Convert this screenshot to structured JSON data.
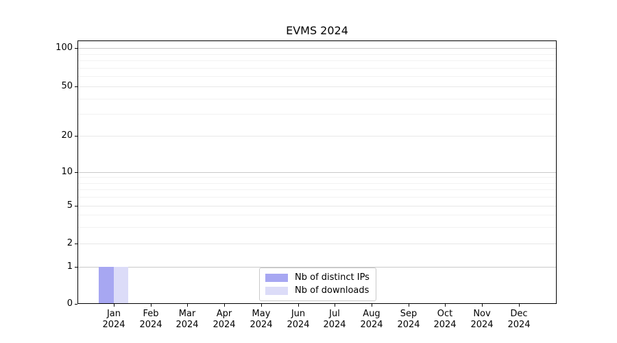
{
  "chart_data": {
    "type": "bar",
    "title": "EVMS 2024",
    "categories": [
      "Jan 2024",
      "Feb 2024",
      "Mar 2024",
      "Apr 2024",
      "May 2024",
      "Jun 2024",
      "Jul 2024",
      "Aug 2024",
      "Sep 2024",
      "Oct 2024",
      "Nov 2024",
      "Dec 2024"
    ],
    "series": [
      {
        "name": "Nb of distinct IPs",
        "color": "#a7a7f2",
        "values": [
          1,
          0,
          0,
          0,
          0,
          0,
          0,
          0,
          0,
          0,
          0,
          0
        ]
      },
      {
        "name": "Nb of downloads",
        "color": "#dcdcf8",
        "values": [
          1,
          0,
          0,
          0,
          0,
          0,
          0,
          0,
          0,
          0,
          0,
          0
        ]
      }
    ],
    "y_axis": {
      "scale": "asinh-like (linear 0-1, log-spaced above)",
      "tick_values": [
        0,
        1,
        2,
        5,
        10,
        20,
        50,
        100
      ],
      "minor_tick_values": [
        3,
        4,
        6,
        7,
        8,
        9,
        30,
        40,
        60,
        70,
        80,
        90
      ],
      "ylim": [
        0,
        110
      ],
      "grid": "horizontal"
    },
    "legend": {
      "position": "inside-bottom-center"
    },
    "xlabel": "",
    "ylabel": ""
  },
  "colors": {
    "background": "#ffffff",
    "bar_distinct_ips": "#a7a7f2",
    "bar_downloads": "#dcdcf8",
    "grid_decade": "#c9c9c9",
    "grid_major": "#e7e7e7",
    "grid_minor": "#f2f2f2",
    "axis": "#000000",
    "text": "#000000",
    "legend_border": "#c9c9c9"
  }
}
